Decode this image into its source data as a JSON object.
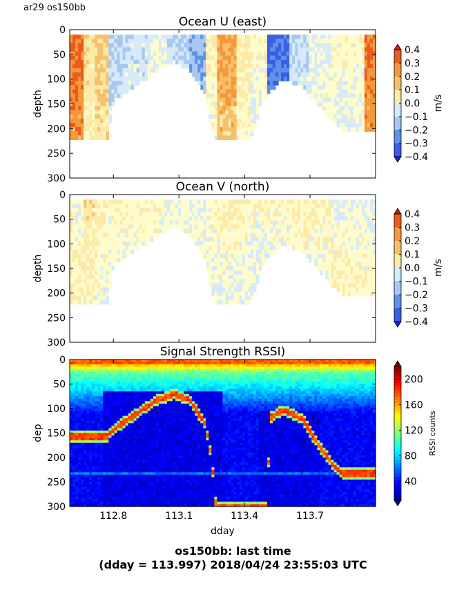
{
  "header": {
    "label": "ar29 os150bb"
  },
  "footer": {
    "line1": "os150bb: last time",
    "line2": "(dday = 113.997) 2018/04/24 23:55:03 UTC"
  },
  "colors": {
    "velocity_cmap": [
      "#1e1ee8",
      "#3a5fe6",
      "#5c92ea",
      "#a7c8f0",
      "#d6eafa",
      "#fffccc",
      "#fde9a8",
      "#f7c06a",
      "#f3993a",
      "#ec5a1e",
      "#c81e0e"
    ],
    "rssi_cmap": [
      "#00008f",
      "#0000ff",
      "#0080ff",
      "#00ffff",
      "#80ff80",
      "#ffff00",
      "#ff8000",
      "#ff0000",
      "#800000"
    ]
  },
  "chart_data": [
    {
      "type": "heatmap",
      "title": "Ocean U (east)",
      "ylabel": "depth",
      "xlabel": "",
      "ylim": [
        300,
        0
      ],
      "xlim": [
        112.6,
        114.0
      ],
      "yticks": [
        "0",
        "50",
        "100",
        "150",
        "200",
        "250",
        "300"
      ],
      "xticks": [
        112.8,
        113.1,
        113.4,
        113.7
      ],
      "colorbar": {
        "label": "m/s",
        "ticks": [
          "0.4",
          "0.3",
          "0.2",
          "0.1",
          "0.0",
          "−0.1",
          "−0.2",
          "−0.3",
          "−0.4"
        ],
        "range": [
          -0.4,
          0.4
        ]
      },
      "bottom_profile": [
        [
          112.6,
          220
        ],
        [
          112.77,
          220
        ],
        [
          112.8,
          140
        ],
        [
          112.9,
          110
        ],
        [
          113.0,
          80
        ],
        [
          113.08,
          60
        ],
        [
          113.15,
          80
        ],
        [
          113.22,
          130
        ],
        [
          113.25,
          200
        ],
        [
          113.27,
          220
        ],
        [
          113.42,
          220
        ],
        [
          113.45,
          190
        ],
        [
          113.47,
          150
        ],
        [
          113.52,
          120
        ],
        [
          113.58,
          95
        ],
        [
          113.62,
          105
        ],
        [
          113.67,
          115
        ],
        [
          113.72,
          140
        ],
        [
          113.8,
          180
        ],
        [
          113.85,
          200
        ],
        [
          114.0,
          205
        ]
      ],
      "velocity_segments": [
        [
          112.6,
          0.3
        ],
        [
          112.66,
          0.1
        ],
        [
          112.72,
          0.15
        ],
        [
          112.78,
          -0.15
        ],
        [
          112.86,
          -0.1
        ],
        [
          112.95,
          -0.05
        ],
        [
          113.05,
          -0.12
        ],
        [
          113.15,
          -0.2
        ],
        [
          113.22,
          0.05
        ],
        [
          113.27,
          0.22
        ],
        [
          113.36,
          0.08
        ],
        [
          113.43,
          0.02
        ],
        [
          113.5,
          -0.3
        ],
        [
          113.6,
          -0.12
        ],
        [
          113.7,
          -0.06
        ],
        [
          113.8,
          0.02
        ],
        [
          113.95,
          0.3
        ]
      ]
    },
    {
      "type": "heatmap",
      "title": "Ocean V (north)",
      "ylabel": "depth",
      "xlabel": "",
      "ylim": [
        300,
        0
      ],
      "xlim": [
        112.6,
        114.0
      ],
      "yticks": [
        "0",
        "50",
        "100",
        "150",
        "200",
        "250",
        "300"
      ],
      "xticks": [
        112.8,
        113.1,
        113.4,
        113.7
      ],
      "colorbar": {
        "label": "m/s",
        "ticks": [
          "0.4",
          "0.3",
          "0.2",
          "0.1",
          "0.0",
          "−0.1",
          "−0.2",
          "−0.3",
          "−0.4"
        ],
        "range": [
          -0.4,
          0.4
        ]
      },
      "bottom_profile": [
        [
          112.6,
          220
        ],
        [
          112.77,
          220
        ],
        [
          112.8,
          140
        ],
        [
          112.9,
          110
        ],
        [
          113.0,
          80
        ],
        [
          113.08,
          60
        ],
        [
          113.15,
          80
        ],
        [
          113.22,
          130
        ],
        [
          113.25,
          200
        ],
        [
          113.27,
          220
        ],
        [
          113.42,
          220
        ],
        [
          113.45,
          190
        ],
        [
          113.47,
          150
        ],
        [
          113.52,
          120
        ],
        [
          113.58,
          95
        ],
        [
          113.62,
          105
        ],
        [
          113.67,
          115
        ],
        [
          113.72,
          140
        ],
        [
          113.8,
          180
        ],
        [
          113.85,
          200
        ],
        [
          114.0,
          205
        ]
      ],
      "velocity_segments": [
        [
          112.6,
          -0.02
        ],
        [
          112.66,
          0.08
        ],
        [
          112.72,
          0.05
        ],
        [
          112.78,
          0.02
        ],
        [
          112.86,
          0.03
        ],
        [
          112.95,
          0.01
        ],
        [
          113.05,
          -0.02
        ],
        [
          113.15,
          -0.04
        ],
        [
          113.22,
          0.02
        ],
        [
          113.27,
          0.04
        ],
        [
          113.36,
          0.03
        ],
        [
          113.43,
          0.01
        ],
        [
          113.5,
          0.02
        ],
        [
          113.6,
          0.04
        ],
        [
          113.7,
          0.03
        ],
        [
          113.8,
          -0.03
        ],
        [
          113.95,
          -0.05
        ]
      ]
    },
    {
      "type": "heatmap",
      "title": "Signal Strength RSSI)",
      "ylabel": "dep",
      "xlabel": "dday",
      "ylim": [
        300,
        0
      ],
      "xlim": [
        112.6,
        114.0
      ],
      "yticks": [
        "0",
        "50",
        "100",
        "150",
        "200",
        "250",
        "300"
      ],
      "xticks": [
        112.8,
        113.1,
        113.4,
        113.7
      ],
      "colorbar": {
        "label": "RSSI counts",
        "ticks": [
          "200",
          "160",
          "120",
          "80",
          "40"
        ],
        "range": [
          10,
          220
        ]
      },
      "bottom_echo": [
        [
          112.77,
          155
        ],
        [
          112.8,
          140
        ],
        [
          112.9,
          110
        ],
        [
          113.0,
          80
        ],
        [
          113.08,
          68
        ],
        [
          113.15,
          80
        ],
        [
          113.22,
          130
        ],
        [
          113.25,
          200
        ],
        [
          113.27,
          300
        ],
        [
          113.5,
          300
        ],
        [
          113.52,
          115
        ],
        [
          113.58,
          100
        ],
        [
          113.62,
          110
        ],
        [
          113.67,
          120
        ],
        [
          113.72,
          160
        ],
        [
          113.8,
          210
        ],
        [
          113.85,
          230
        ]
      ],
      "layer_depth": 230
    }
  ]
}
